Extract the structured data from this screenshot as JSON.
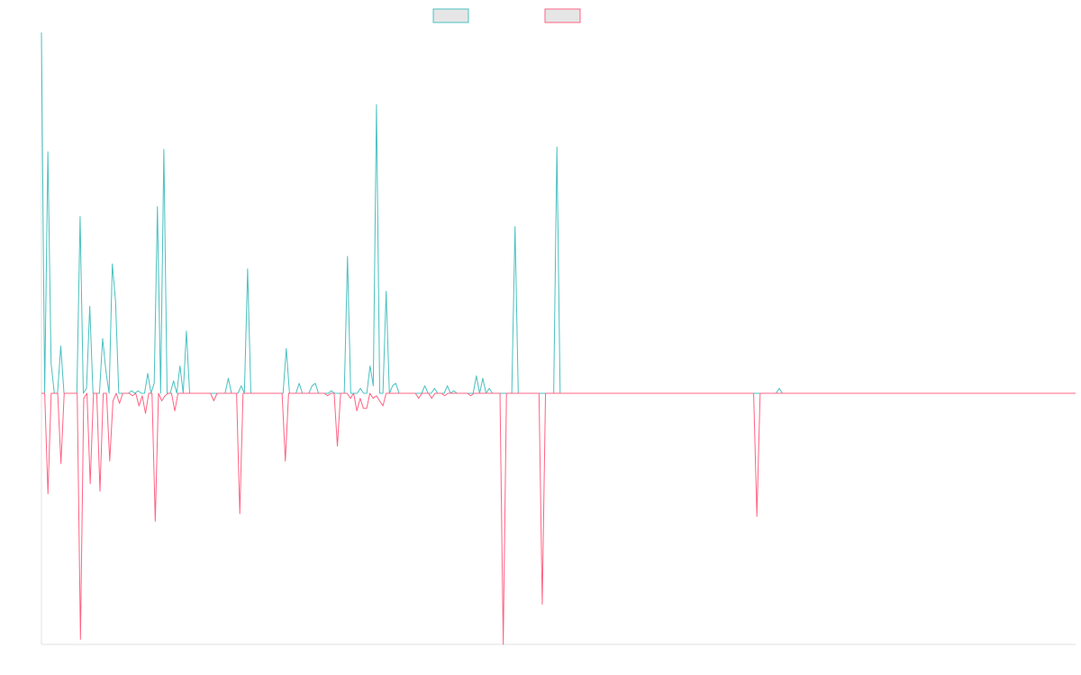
{
  "chart_data": {
    "type": "line",
    "title": "",
    "xlabel": "",
    "ylabel": "",
    "ylim": [
      -1.0,
      1.45
    ],
    "grid": false,
    "legend_position": "top-center",
    "series": [
      {
        "name": "",
        "color": "#4bc0c0",
        "fill": "#e6e6e6",
        "values": [
          1.45,
          0,
          0.97,
          0.12,
          0,
          0,
          0.19,
          0,
          0,
          0,
          0,
          0,
          0.71,
          0,
          0.02,
          0.35,
          0,
          0,
          0,
          0.22,
          0.09,
          0,
          0.52,
          0.37,
          0,
          0,
          0,
          0,
          0.01,
          0,
          0.01,
          0,
          0,
          0.08,
          0,
          0.04,
          0.75,
          0,
          0.98,
          0,
          0,
          0.05,
          0,
          0.11,
          0,
          0.25,
          0,
          0,
          0,
          0,
          0,
          0,
          0,
          0,
          0,
          0,
          0,
          0,
          0.06,
          0,
          0,
          0,
          0.03,
          0,
          0.5,
          0,
          0,
          0,
          0,
          0,
          0,
          0,
          0,
          0,
          0,
          0,
          0.18,
          0,
          0,
          0,
          0.04,
          0,
          0,
          0,
          0.03,
          0.04,
          0,
          0,
          0,
          0,
          0.01,
          0,
          0,
          0,
          0,
          0.55,
          0,
          0,
          0,
          0.02,
          0,
          0,
          0.11,
          0.03,
          1.16,
          0,
          0,
          0.41,
          0,
          0.03,
          0.04,
          0,
          0,
          0,
          0,
          0,
          0,
          0,
          0,
          0.03,
          0,
          0,
          0.02,
          0,
          0,
          0,
          0.03,
          0,
          0.01,
          0,
          0,
          0,
          0,
          0,
          0,
          0.07,
          0,
          0.06,
          0,
          0.02,
          0,
          0,
          0,
          0,
          0,
          0,
          0,
          0.67,
          0,
          0,
          0,
          0,
          0,
          0,
          0,
          0,
          0,
          0,
          0,
          0,
          0.99,
          0,
          0,
          0,
          0,
          0,
          0,
          0,
          0,
          0,
          0,
          0,
          0,
          0,
          0,
          0,
          0,
          0,
          0,
          0,
          0,
          0,
          0,
          0,
          0,
          0,
          0,
          0,
          0,
          0,
          0,
          0,
          0,
          0,
          0,
          0,
          0,
          0,
          0,
          0,
          0,
          0,
          0,
          0,
          0,
          0,
          0,
          0,
          0,
          0,
          0,
          0,
          0,
          0,
          0,
          0,
          0,
          0,
          0,
          0,
          0,
          0,
          0,
          0,
          0,
          0,
          0,
          0,
          0,
          0.02,
          0,
          0,
          0,
          0,
          0,
          0,
          0,
          0,
          0,
          0,
          0,
          0,
          0,
          0,
          0,
          0,
          0,
          0,
          0,
          0,
          0,
          0,
          0,
          0,
          0,
          0,
          0,
          0,
          0,
          0,
          0,
          0,
          0,
          0,
          0,
          0,
          0,
          0,
          0,
          0,
          0,
          0,
          0,
          0,
          0,
          0,
          0,
          0,
          0,
          0,
          0,
          0,
          0,
          0,
          0,
          0,
          0,
          0,
          0,
          0,
          0,
          0,
          0,
          0,
          0,
          0,
          0,
          0,
          0,
          0,
          0,
          0,
          0,
          0,
          0,
          0,
          0,
          0,
          0,
          0,
          0,
          0,
          0,
          0,
          0,
          0,
          0,
          0,
          0,
          0,
          0,
          0
        ]
      },
      {
        "name": "",
        "color": "#ff6384",
        "fill": "#e6e6e6",
        "values": [
          0,
          0,
          -0.4,
          0,
          0,
          0,
          -0.28,
          0,
          0,
          0,
          0,
          0,
          -0.98,
          -0.02,
          0,
          -0.36,
          0,
          0,
          -0.39,
          0,
          0,
          -0.27,
          -0.03,
          0,
          -0.04,
          0,
          0,
          0,
          -0.01,
          0,
          -0.05,
          -0.01,
          -0.08,
          0,
          0,
          -0.51,
          0,
          -0.03,
          -0.01,
          0,
          0,
          -0.07,
          0,
          0,
          0,
          0,
          0,
          0,
          0,
          0,
          0,
          0,
          0,
          -0.03,
          0,
          0,
          0,
          0,
          0,
          0,
          0,
          -0.48,
          0,
          0,
          0,
          0,
          0,
          0,
          0,
          0,
          0,
          0,
          0,
          0,
          0,
          -0.27,
          0,
          0,
          0,
          0,
          0,
          0,
          0,
          0,
          0,
          0,
          0,
          0,
          -0.01,
          0,
          0,
          -0.21,
          0,
          0,
          0,
          -0.02,
          0,
          -0.07,
          -0.02,
          -0.06,
          -0.06,
          0,
          -0.02,
          -0.01,
          -0.03,
          -0.05,
          0,
          0,
          0,
          0,
          0,
          0,
          0,
          0,
          0,
          0,
          -0.02,
          0,
          0,
          0,
          -0.02,
          0,
          0,
          0,
          -0.01,
          0,
          0,
          0,
          0,
          0,
          0,
          0,
          -0.01,
          0,
          0,
          0,
          0,
          0,
          0,
          0,
          0,
          0,
          -1.0,
          0,
          0,
          0,
          0,
          0,
          0,
          0,
          0,
          0,
          0,
          0,
          -0.84,
          0,
          0,
          0,
          0,
          0,
          0,
          0,
          0,
          0,
          0,
          0,
          0,
          0,
          0,
          0,
          0,
          0,
          0,
          0,
          0,
          0,
          0,
          0,
          0,
          0,
          0,
          0,
          0,
          0,
          0,
          0,
          0,
          0,
          0,
          0,
          0,
          0,
          0,
          0,
          0,
          0,
          0,
          0,
          0,
          0,
          0,
          0,
          0,
          0,
          0,
          0,
          0,
          0,
          0,
          0,
          0,
          0,
          0,
          0,
          0,
          0,
          0,
          0,
          0,
          0,
          -0.49,
          0,
          0,
          0,
          0,
          0,
          0,
          0,
          0,
          0,
          0,
          0,
          0,
          0,
          0,
          0,
          0,
          0,
          0,
          0,
          0,
          0,
          0,
          0,
          0,
          0,
          0,
          0,
          0,
          0,
          0,
          0,
          0,
          0,
          0,
          0,
          0,
          0,
          0,
          0,
          0,
          0,
          0,
          0,
          0,
          0,
          0,
          0,
          0,
          0,
          0,
          0,
          0,
          0,
          0,
          0,
          0,
          0,
          0,
          0,
          0,
          0,
          0,
          0,
          0,
          0,
          0,
          0,
          0,
          0,
          0,
          0,
          0,
          0,
          0,
          0,
          0,
          0,
          0,
          0,
          0,
          0,
          0,
          0,
          0,
          0,
          0,
          0,
          0,
          0,
          0,
          0,
          0,
          0,
          0,
          0,
          0,
          0,
          0
        ]
      }
    ]
  }
}
